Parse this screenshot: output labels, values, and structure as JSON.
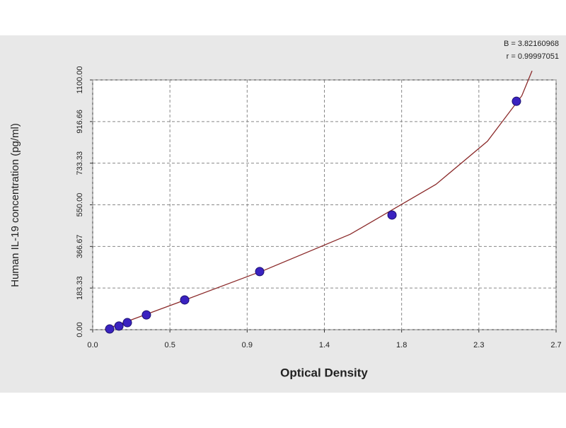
{
  "chart_data": {
    "type": "scatter",
    "x_label": "Optical Density",
    "y_label": "Human IL-19 concentration (pg/ml)",
    "annotations": [
      "B = 3.82160968",
      "r = 0.99997051"
    ],
    "xlim": [
      0,
      2.7
    ],
    "xticks": [
      {
        "value": 0,
        "label": "0.0"
      },
      {
        "value": 0.45,
        "label": "0.5"
      },
      0.9,
      {
        "value": 1.35,
        "label": "1.4"
      },
      1.8,
      {
        "value": 2.25,
        "label": "2.3"
      },
      2.7
    ],
    "ylim": [
      0,
      1100
    ],
    "yticks": [
      {
        "value": 0,
        "label": "0.00"
      },
      183.33,
      366.67,
      {
        "value": 550,
        "label": "550.00"
      },
      733.33,
      916.66,
      {
        "value": 1100,
        "label": "1100.00"
      }
    ],
    "grid": true,
    "series": [
      {
        "type": "scatter",
        "color": "#3a22c0",
        "x": [
          0.099,
          0.153,
          0.202,
          0.313,
          0.536,
          0.973,
          1.744,
          2.469
        ],
        "values": [
          3,
          16,
          31,
          65,
          131,
          256,
          505,
          1006
        ]
      },
      {
        "type": "line",
        "color": "#8b2a2a",
        "x": [
          0.07,
          0.5,
          1.0,
          1.5,
          2.0,
          2.3,
          2.5,
          2.56
        ],
        "values": [
          0,
          120,
          262,
          420,
          640,
          830,
          1030,
          1140
        ]
      }
    ]
  }
}
